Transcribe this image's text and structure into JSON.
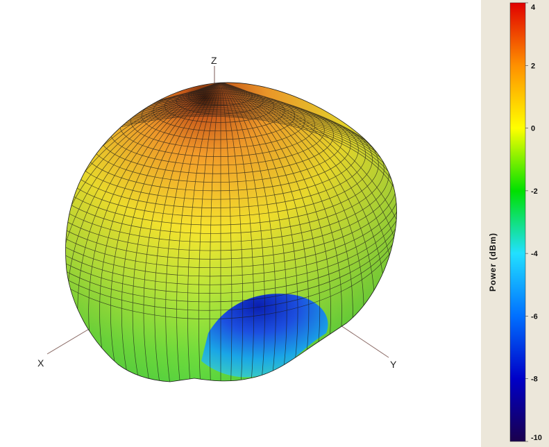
{
  "chart_data": {
    "type": "3d-radiation-pattern",
    "axes": {
      "x_label": "X",
      "y_label": "Y",
      "z_label": "Z"
    },
    "colorbar": {
      "title": "Power  (dBm)",
      "min": -10,
      "max": 4,
      "ticks": [
        4,
        2,
        0,
        -2,
        -4,
        -6,
        -8,
        -10
      ],
      "colormap": [
        "#1a004d",
        "#0000c8",
        "#0070ff",
        "#22e0ff",
        "#00e000",
        "#ffff00",
        "#ff9000",
        "#e00000"
      ]
    },
    "surface_color_ranges": {
      "top": 3,
      "upper_body": 2,
      "middle": 0,
      "lower_body": -1,
      "underside_dip": -7
    }
  }
}
